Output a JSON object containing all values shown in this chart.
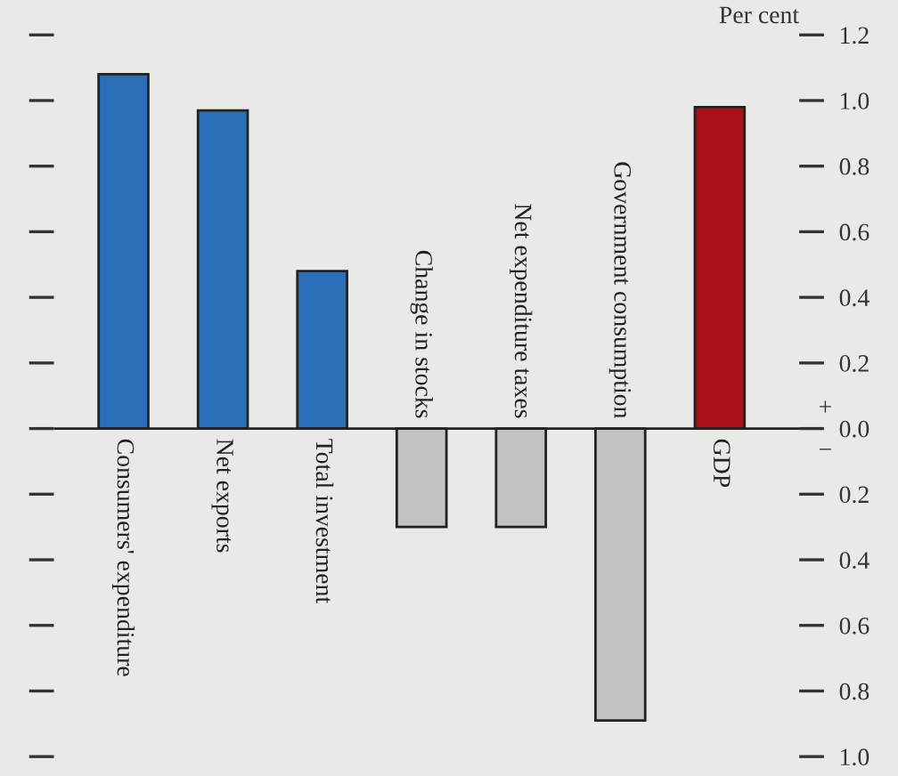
{
  "chart_data": {
    "type": "bar",
    "ylabel": "Per cent",
    "categories": [
      "Consumers' expenditure",
      "Net exports",
      "Total investment",
      "Change in stocks",
      "Net expenditure taxes",
      "Government consumption",
      "GDP"
    ],
    "values": [
      1.08,
      0.97,
      0.48,
      -0.3,
      -0.3,
      -0.89,
      0.98
    ],
    "colors": [
      "#2a6fb8",
      "#2a6fb8",
      "#2a6fb8",
      "#c2c2c2",
      "#c2c2c2",
      "#c2c2c2",
      "#a8101a"
    ],
    "ylim": [
      -1.0,
      1.2
    ],
    "yticks": [
      {
        "value": -1.0,
        "label": "1.0"
      },
      {
        "value": -0.8,
        "label": "0.8"
      },
      {
        "value": -0.6,
        "label": "0.6"
      },
      {
        "value": -0.4,
        "label": "0.4"
      },
      {
        "value": -0.2,
        "label": "0.2"
      },
      {
        "value": 0.0,
        "label": "0.0"
      },
      {
        "value": 0.2,
        "label": "0.2"
      },
      {
        "value": 0.4,
        "label": "0.4"
      },
      {
        "value": 0.6,
        "label": "0.6"
      },
      {
        "value": 0.8,
        "label": "0.8"
      },
      {
        "value": 1.0,
        "label": "1.0"
      },
      {
        "value": 1.2,
        "label": "1.2"
      }
    ],
    "annotations": [
      "+",
      "−"
    ],
    "grid": false,
    "legend": false
  }
}
